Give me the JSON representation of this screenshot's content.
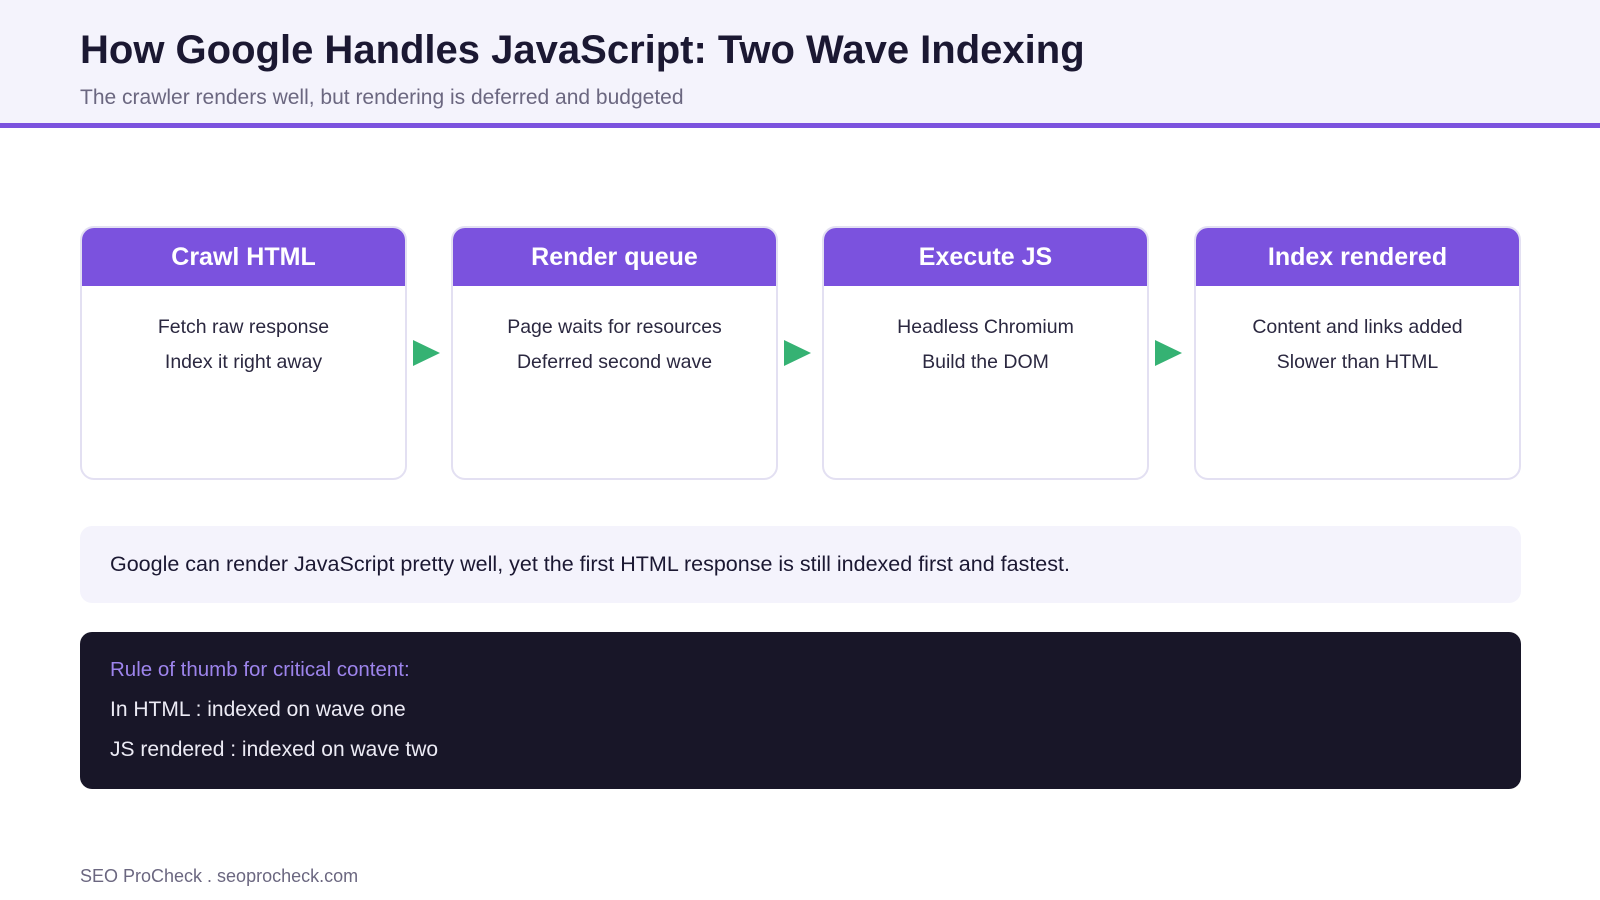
{
  "header": {
    "title": "How Google Handles JavaScript: Two Wave Indexing",
    "subtitle": "The crawler renders well, but rendering is deferred and budgeted"
  },
  "steps": [
    {
      "title": "Crawl HTML",
      "line1": "Fetch raw response",
      "line2": "Index it right away"
    },
    {
      "title": "Render queue",
      "line1": "Page waits for resources",
      "line2": "Deferred second wave"
    },
    {
      "title": "Execute JS",
      "line1": "Headless Chromium",
      "line2": "Build the DOM"
    },
    {
      "title": "Index rendered",
      "line1": "Content and links added",
      "line2": "Slower than HTML"
    }
  ],
  "note": {
    "text": "Google can render JavaScript pretty well, yet the first HTML response is still indexed first and fastest."
  },
  "rule": {
    "heading": "Rule of thumb for critical content:",
    "line1": "In HTML : indexed on wave one",
    "line2": "JS rendered : indexed on wave two"
  },
  "footer": {
    "text": "SEO ProCheck . seoprocheck.com"
  },
  "colors": {
    "accent": "#7b52de",
    "arrow": "#35b273",
    "dark_panel": "#181628",
    "header_bg": "#f4f3fc"
  }
}
